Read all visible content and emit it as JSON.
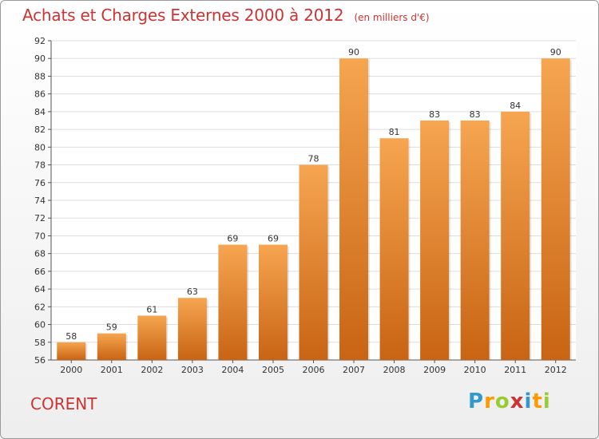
{
  "title": "Achats et Charges Externes 2000 à 2012",
  "subtitle": "(en milliers d'€)",
  "location": "CORENT",
  "brand": {
    "letters": [
      "P",
      "r",
      "o",
      "x",
      "i",
      "t",
      "i"
    ],
    "colors": [
      "#3399cc",
      "#ff9900",
      "#99cc33",
      "#cc3333",
      "#3399cc",
      "#ff9900",
      "#99cc33"
    ]
  },
  "colors": {
    "bar_top": "#f6a550",
    "bar_bottom": "#c86414",
    "title": "#cc3333"
  },
  "chart_data": {
    "type": "bar",
    "title": "Achats et Charges Externes 2000 à 2012",
    "subtitle": "(en milliers d'€)",
    "categories": [
      "2000",
      "2001",
      "2002",
      "2003",
      "2004",
      "2005",
      "2006",
      "2007",
      "2008",
      "2009",
      "2010",
      "2011",
      "2012"
    ],
    "values": [
      58,
      59,
      61,
      63,
      69,
      69,
      78,
      90,
      81,
      83,
      83,
      84,
      90
    ],
    "ylim": [
      56,
      92
    ],
    "yticks": [
      56,
      58,
      60,
      62,
      64,
      66,
      68,
      70,
      72,
      74,
      76,
      78,
      80,
      82,
      84,
      86,
      88,
      90,
      92
    ],
    "grid": true,
    "legend": "none"
  }
}
